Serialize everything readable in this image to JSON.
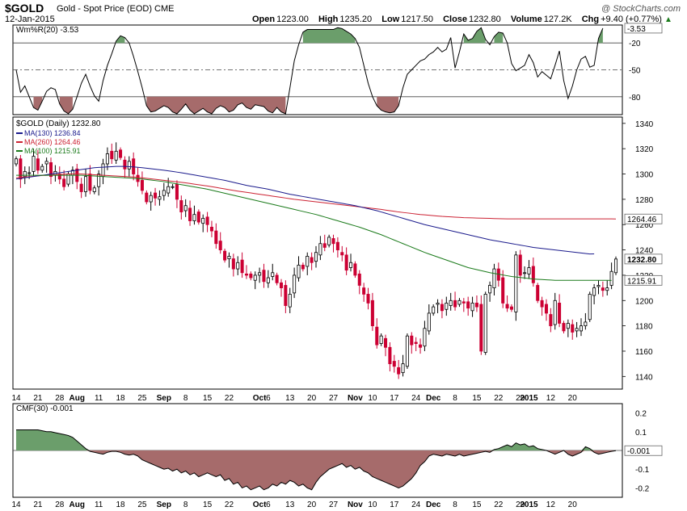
{
  "header": {
    "symbol": "$GOLD",
    "subtitle": "Gold - Spot Price (EOD)",
    "exchange": "CME",
    "date": "12-Jan-2015",
    "brand": "@ StockCharts.com",
    "open_label": "Open",
    "open": "1223.00",
    "high_label": "High",
    "high": "1235.20",
    "low_label": "Low",
    "low": "1217.50",
    "close_label": "Close",
    "close": "1232.80",
    "volume_label": "Volume",
    "volume": "127.2K",
    "chg_label": "Chg",
    "chg": "+9.40 (+0.77%)",
    "chg_arrow": "▲"
  },
  "colors": {
    "up_candle": "#000000",
    "down_candle": "#cc0033",
    "ma130": "#1a1a8c",
    "ma260": "#cc2233",
    "ma100": "#1a7a1a",
    "willr_over": "#6b9e6b",
    "willr_under": "#a66b6b",
    "cmf_pos": "#6b9e6b",
    "cmf_neg": "#a66b6b"
  },
  "chart_data": [
    {
      "type": "line",
      "name": "williams_r",
      "label": "Wm%R(20) -3.53",
      "ylim": [
        -100,
        0
      ],
      "yticks": [
        {
          "v": -3.53,
          "label": "-3.53",
          "badge": true
        },
        {
          "v": -20,
          "label": "-20"
        },
        {
          "v": -50,
          "label": "-50"
        },
        {
          "v": -80,
          "label": "-80"
        }
      ],
      "reference_lines": [
        -20,
        -50,
        -80
      ],
      "values": [
        -50,
        -75,
        -68,
        -80,
        -92,
        -95,
        -85,
        -74,
        -70,
        -72,
        -88,
        -96,
        -99,
        -94,
        -80,
        -65,
        -55,
        -68,
        -79,
        -85,
        -62,
        -45,
        -32,
        -18,
        -12,
        -14,
        -20,
        -35,
        -52,
        -70,
        -90,
        -97,
        -96,
        -93,
        -90,
        -92,
        -97,
        -99,
        -94,
        -88,
        -95,
        -99,
        -96,
        -93,
        -97,
        -99,
        -93,
        -90,
        -92,
        -97,
        -95,
        -89,
        -87,
        -92,
        -94,
        -89,
        -90,
        -91,
        -96,
        -98,
        -92,
        -97,
        -99,
        -70,
        -40,
        -22,
        -8,
        -5,
        -5,
        -5,
        -5,
        -5,
        -5,
        -5,
        -3,
        -4,
        -7,
        -10,
        -15,
        -25,
        -45,
        -65,
        -80,
        -90,
        -95,
        -97,
        -98,
        -97,
        -90,
        -70,
        -55,
        -50,
        -45,
        -40,
        -38,
        -33,
        -30,
        -25,
        -30,
        -27,
        -14,
        -48,
        -30,
        -10,
        -17,
        -15,
        -7,
        -3,
        -16,
        -22,
        -13,
        -8,
        -9,
        -20,
        -43,
        -51,
        -48,
        -45,
        -33,
        -42,
        -58,
        -52,
        -56,
        -60,
        -45,
        -29,
        -62,
        -82,
        -68,
        -50,
        -38,
        -35,
        -47,
        -45,
        -15,
        -3.53
      ]
    },
    {
      "type": "candlestick",
      "name": "price",
      "label": "$GOLD (Daily) 1232.80",
      "ylim": [
        1130,
        1345
      ],
      "yticks": [
        1140,
        1160,
        1180,
        1200,
        1220,
        1240,
        1260,
        1280,
        1300,
        1320,
        1340
      ],
      "badges": [
        {
          "v": 1264.46,
          "label": "1264.46"
        },
        {
          "v": 1232.8,
          "label": "1232.80",
          "bold": true
        },
        {
          "v": 1215.91,
          "label": "1215.91"
        }
      ],
      "legend": [
        {
          "name": "MA(130) 1236.84",
          "color_key": "ma130"
        },
        {
          "name": "MA(260) 1264.46",
          "color_key": "ma260"
        },
        {
          "name": "MA(100) 1215.91",
          "color_key": "ma100"
        }
      ],
      "closes": [
        1312,
        1296,
        1302,
        1301,
        1314,
        1303,
        1306,
        1310,
        1298,
        1302,
        1296,
        1290,
        1300,
        1303,
        1294,
        1286,
        1298,
        1287,
        1289,
        1300,
        1308,
        1316,
        1312,
        1318,
        1313,
        1304,
        1310,
        1300,
        1294,
        1287,
        1278,
        1283,
        1281,
        1282,
        1287,
        1290,
        1290,
        1280,
        1270,
        1275,
        1263,
        1268,
        1262,
        1265,
        1260,
        1255,
        1245,
        1240,
        1232,
        1235,
        1225,
        1230,
        1222,
        1220,
        1218,
        1220,
        1222,
        1215,
        1218,
        1222,
        1214,
        1210,
        1196,
        1205,
        1220,
        1228,
        1225,
        1235,
        1230,
        1238,
        1245,
        1242,
        1250,
        1245,
        1240,
        1236,
        1224,
        1230,
        1220,
        1212,
        1205,
        1198,
        1180,
        1165,
        1172,
        1163,
        1150,
        1148,
        1142,
        1150,
        1172,
        1165,
        1166,
        1163,
        1178,
        1190,
        1195,
        1198,
        1192,
        1198,
        1200,
        1195,
        1200,
        1198,
        1194,
        1198,
        1195,
        1160,
        1205,
        1212,
        1225,
        1216,
        1198,
        1194,
        1193,
        1236,
        1220,
        1222,
        1226,
        1214,
        1200,
        1195,
        1190,
        1180,
        1200,
        1182,
        1176,
        1182,
        1175,
        1178,
        1180,
        1183,
        1205,
        1210,
        1212,
        1208,
        1210,
        1223,
        1232.8
      ],
      "ma130": [
        1296,
        1296.5,
        1297,
        1297.5,
        1298,
        1298.5,
        1299,
        1299.5,
        1300,
        1300.5,
        1301,
        1301.5,
        1302,
        1302.5,
        1303,
        1303.5,
        1304,
        1304.5,
        1305,
        1305.2,
        1305.4,
        1305.6,
        1305.8,
        1306,
        1306,
        1306,
        1305.8,
        1305.6,
        1305.3,
        1305,
        1304.6,
        1304.2,
        1303.8,
        1303.4,
        1303,
        1302.5,
        1302,
        1301.5,
        1301,
        1300.4,
        1299.8,
        1299.2,
        1298.6,
        1298,
        1297.4,
        1296.8,
        1296.2,
        1295.6,
        1295,
        1294.2,
        1293.4,
        1292.6,
        1291.8,
        1291,
        1290.4,
        1289.8,
        1289.2,
        1288.6,
        1288,
        1287.2,
        1286.4,
        1285.6,
        1284.8,
        1284,
        1283.4,
        1282.8,
        1282.2,
        1281.6,
        1281,
        1280.4,
        1279.8,
        1279.2,
        1278.6,
        1278,
        1277.4,
        1276.8,
        1276.2,
        1275.6,
        1275,
        1274.2,
        1273.4,
        1272.6,
        1271.8,
        1271,
        1270,
        1269,
        1268,
        1267,
        1266,
        1265,
        1264,
        1263,
        1262,
        1261,
        1260,
        1259.2,
        1258.4,
        1257.6,
        1256.8,
        1256,
        1255.2,
        1254.4,
        1253.6,
        1252.8,
        1252,
        1251.2,
        1250.4,
        1249.6,
        1248.8,
        1248,
        1247.4,
        1246.8,
        1246.2,
        1245.6,
        1245,
        1244.4,
        1243.8,
        1243.2,
        1242.6,
        1242,
        1241.6,
        1241.2,
        1240.8,
        1240.4,
        1240,
        1239.6,
        1239.2,
        1238.8,
        1238.4,
        1238,
        1237.6,
        1237.2,
        1236.8,
        1236.84
      ],
      "ma260": [
        1297,
        1297.3,
        1297.6,
        1297.9,
        1298.2,
        1298.5,
        1298.8,
        1299,
        1299.2,
        1299.4,
        1299.6,
        1299.8,
        1300,
        1300,
        1300,
        1300,
        1299.8,
        1299.6,
        1299.4,
        1299.2,
        1299,
        1298.8,
        1298.6,
        1298.4,
        1298.2,
        1298,
        1297.8,
        1297.6,
        1297.3,
        1297,
        1296.6,
        1296.2,
        1295.8,
        1295.4,
        1295,
        1294.6,
        1294.2,
        1293.8,
        1293.4,
        1293,
        1292.5,
        1292,
        1291.5,
        1291,
        1290.5,
        1290,
        1289.4,
        1288.8,
        1288.2,
        1287.6,
        1287,
        1286.5,
        1286,
        1285.5,
        1285,
        1284.5,
        1284,
        1283.5,
        1283,
        1282.5,
        1282,
        1281.5,
        1281,
        1280.5,
        1280,
        1279.6,
        1279.2,
        1278.8,
        1278.4,
        1278,
        1277.6,
        1277.2,
        1276.8,
        1276.4,
        1276,
        1275.6,
        1275.2,
        1274.8,
        1274.4,
        1274,
        1273.6,
        1273.2,
        1272.8,
        1272.4,
        1272,
        1271.5,
        1271,
        1270.5,
        1270,
        1269.6,
        1269.2,
        1268.8,
        1268.4,
        1268,
        1267.7,
        1267.4,
        1267.1,
        1266.8,
        1266.5,
        1266.3,
        1266.1,
        1265.9,
        1265.7,
        1265.5,
        1265.4,
        1265.3,
        1265.2,
        1265.1,
        1265,
        1264.9,
        1264.8,
        1264.7,
        1264.6,
        1264.5,
        1264.5,
        1264.5,
        1264.5,
        1264.5,
        1264.5,
        1264.5,
        1264.5,
        1264.5,
        1264.5,
        1264.5,
        1264.5,
        1264.5,
        1264.5,
        1264.5,
        1264.5,
        1264.5,
        1264.5,
        1264.5,
        1264.5,
        1264.5,
        1264.5,
        1264.5,
        1264.5,
        1264.5,
        1264.46
      ],
      "ma100": [
        1299,
        1299,
        1299,
        1299,
        1299,
        1299,
        1299,
        1299,
        1299,
        1299,
        1299,
        1299,
        1299,
        1299,
        1299,
        1299,
        1298.8,
        1298.6,
        1298.4,
        1298.2,
        1298,
        1297.8,
        1297.6,
        1297.4,
        1297.2,
        1297,
        1296.8,
        1296.6,
        1296.3,
        1296,
        1295.6,
        1295.2,
        1294.8,
        1294.4,
        1294,
        1293.4,
        1292.8,
        1292.2,
        1291.6,
        1291,
        1290.4,
        1289.8,
        1289.2,
        1288.6,
        1288,
        1287.2,
        1286.4,
        1285.6,
        1284.8,
        1284,
        1283.2,
        1282.4,
        1281.6,
        1280.8,
        1280,
        1279.2,
        1278.4,
        1277.6,
        1276.8,
        1276,
        1275.2,
        1274.4,
        1273.6,
        1272.8,
        1272,
        1271.2,
        1270.4,
        1269.6,
        1268.8,
        1268,
        1267,
        1266,
        1265,
        1264,
        1263,
        1262,
        1261,
        1260,
        1259,
        1258,
        1256.8,
        1255.6,
        1254.4,
        1253.2,
        1252,
        1250.6,
        1249.2,
        1247.8,
        1246.4,
        1245,
        1243.6,
        1242.2,
        1240.8,
        1239.4,
        1238,
        1236.8,
        1235.6,
        1234.4,
        1233.2,
        1232,
        1230.8,
        1229.6,
        1228.4,
        1227.2,
        1226,
        1225.2,
        1224.4,
        1223.6,
        1222.8,
        1222,
        1221.4,
        1220.8,
        1220.2,
        1219.6,
        1219,
        1218.6,
        1218.2,
        1217.8,
        1217.4,
        1217,
        1216.8,
        1216.6,
        1216.4,
        1216.2,
        1216,
        1216,
        1216,
        1216,
        1216,
        1216,
        1216,
        1216,
        1216,
        1216,
        1216,
        1216,
        1216,
        1215.91
      ]
    },
    {
      "type": "area",
      "name": "cmf",
      "label": "CMF(30) -0.001",
      "ylim": [
        -0.25,
        0.25
      ],
      "yticks": [
        {
          "v": 0.2,
          "label": "0.2"
        },
        {
          "v": 0.1,
          "label": "0.1"
        },
        {
          "v": -0.001,
          "label": "-0.001",
          "badge": true
        },
        {
          "v": -0.1,
          "label": "-0.1"
        },
        {
          "v": -0.2,
          "label": "-0.2"
        }
      ],
      "values": [
        0.11,
        0.11,
        0.11,
        0.11,
        0.11,
        0.11,
        0.105,
        0.1,
        0.1,
        0.095,
        0.09,
        0.085,
        0.08,
        0.07,
        0.05,
        0.03,
        0.01,
        -0.005,
        -0.01,
        -0.015,
        -0.02,
        -0.01,
        -0.005,
        -0.005,
        -0.01,
        -0.02,
        -0.025,
        -0.02,
        -0.03,
        -0.05,
        -0.06,
        -0.07,
        -0.08,
        -0.09,
        -0.1,
        -0.095,
        -0.11,
        -0.1,
        -0.12,
        -0.11,
        -0.13,
        -0.12,
        -0.14,
        -0.13,
        -0.12,
        -0.13,
        -0.14,
        -0.13,
        -0.16,
        -0.15,
        -0.18,
        -0.17,
        -0.2,
        -0.19,
        -0.21,
        -0.2,
        -0.19,
        -0.21,
        -0.2,
        -0.18,
        -0.19,
        -0.17,
        -0.18,
        -0.16,
        -0.17,
        -0.19,
        -0.18,
        -0.2,
        -0.21,
        -0.17,
        -0.14,
        -0.12,
        -0.1,
        -0.09,
        -0.08,
        -0.07,
        -0.09,
        -0.08,
        -0.1,
        -0.09,
        -0.11,
        -0.12,
        -0.14,
        -0.15,
        -0.16,
        -0.17,
        -0.18,
        -0.19,
        -0.2,
        -0.19,
        -0.17,
        -0.15,
        -0.12,
        -0.08,
        -0.06,
        -0.03,
        -0.02,
        -0.025,
        -0.03,
        -0.02,
        -0.025,
        -0.03,
        -0.02,
        -0.03,
        -0.025,
        -0.02,
        -0.015,
        -0.01,
        -0.005,
        -0.01,
        0.005,
        0.01,
        0.02,
        0.03,
        0.02,
        0.04,
        0.03,
        0.035,
        0.02,
        0.025,
        0.01,
        0.005,
        0.0,
        -0.01,
        -0.02,
        -0.01,
        0.0,
        -0.02,
        -0.03,
        -0.02,
        -0.01,
        0.02,
        0.01,
        -0.01,
        -0.02,
        -0.015,
        -0.01,
        -0.005,
        -0.001
      ]
    }
  ],
  "x_axis": {
    "labels": [
      {
        "i": 0,
        "t": "14"
      },
      {
        "i": 5,
        "t": "21"
      },
      {
        "i": 10,
        "t": "28"
      },
      {
        "i": 14,
        "t": "Aug",
        "bold": true
      },
      {
        "i": 19,
        "t": "11"
      },
      {
        "i": 24,
        "t": "18"
      },
      {
        "i": 29,
        "t": "25"
      },
      {
        "i": 34,
        "t": "Sep",
        "bold": true
      },
      {
        "i": 39,
        "t": "8"
      },
      {
        "i": 44,
        "t": "15"
      },
      {
        "i": 49,
        "t": "22"
      },
      {
        "i": 56,
        "t": "Oct",
        "bold": true
      },
      {
        "i": 58,
        "t": "6"
      },
      {
        "i": 63,
        "t": "13"
      },
      {
        "i": 68,
        "t": "20"
      },
      {
        "i": 73,
        "t": "27"
      },
      {
        "i": 78,
        "t": "Nov",
        "bold": true
      },
      {
        "i": 82,
        "t": "10"
      },
      {
        "i": 87,
        "t": "17"
      },
      {
        "i": 92,
        "t": "24"
      },
      {
        "i": 96,
        "t": "Dec",
        "bold": true
      },
      {
        "i": 101,
        "t": "8"
      },
      {
        "i": 106,
        "t": "15"
      },
      {
        "i": 111,
        "t": "22"
      },
      {
        "i": 116,
        "t": "29"
      },
      {
        "i": 118,
        "t": "2015",
        "bold": true
      },
      {
        "i": 123,
        "t": "12"
      },
      {
        "i": 128,
        "t": "20"
      }
    ]
  }
}
